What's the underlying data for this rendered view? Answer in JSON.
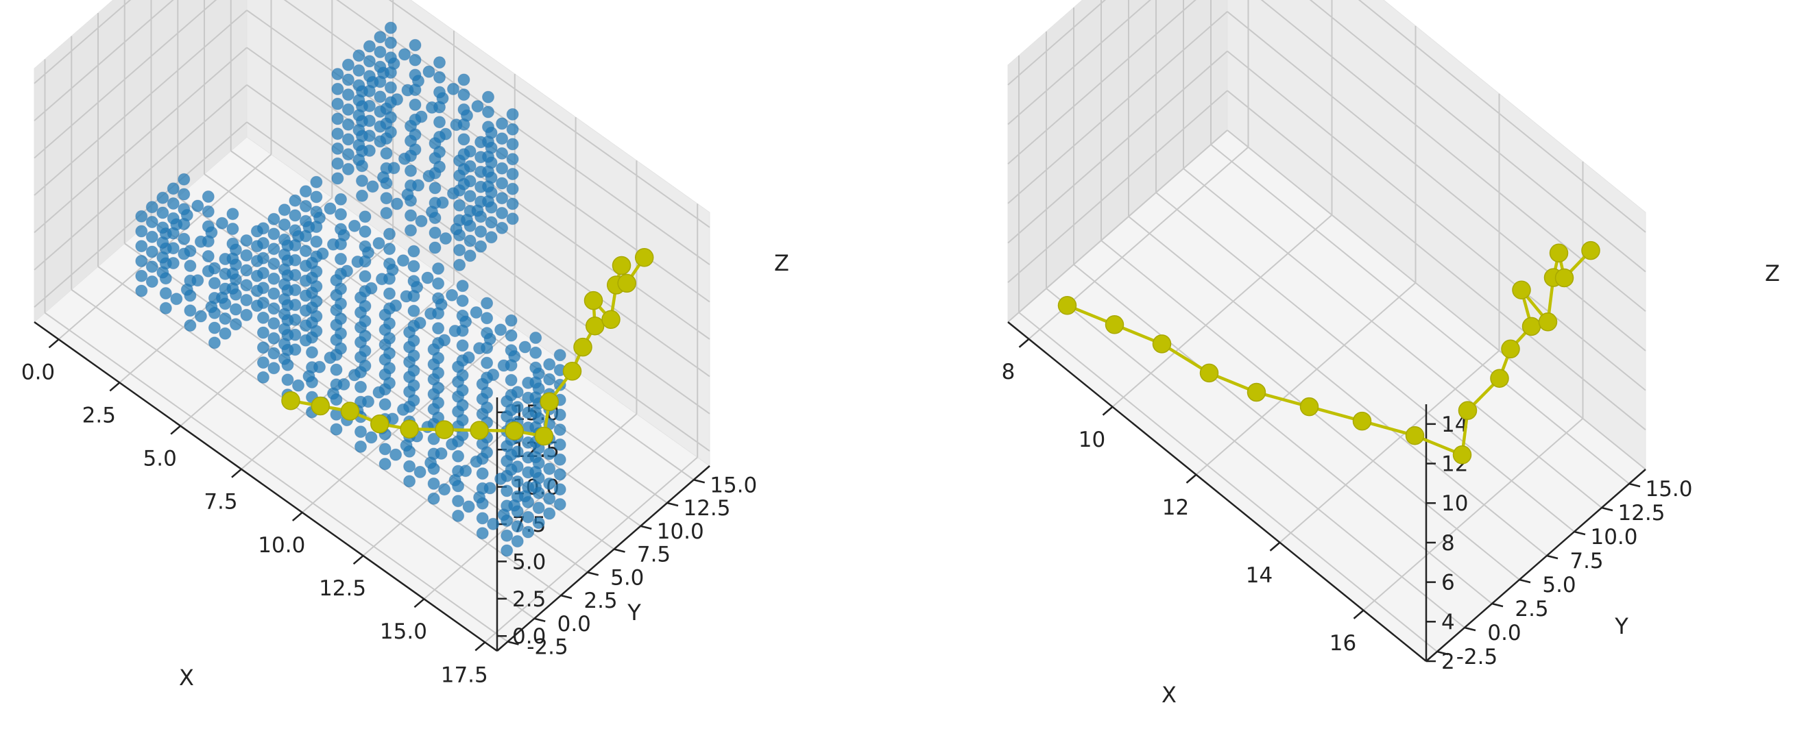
{
  "colors": {
    "voxel": "#1f77b4",
    "path": "#bfbf00",
    "pane": "#f2f2f2",
    "grid": "#c8c8c8",
    "axis": "#222222"
  },
  "chart_data": [
    {
      "type": "scatter",
      "kind": "3d",
      "xlabel": "X",
      "ylabel": "Y",
      "zlabel": "Z",
      "xlim": [
        -1,
        18
      ],
      "ylim": [
        -3.5,
        16.5
      ],
      "zlim": [
        -1,
        16
      ],
      "xticks": [
        "0.0",
        "2.5",
        "5.0",
        "7.5",
        "10.0",
        "12.5",
        "15.0",
        "17.5"
      ],
      "yticks": [
        "-2.5",
        "0.0",
        "2.5",
        "5.0",
        "7.5",
        "10.0",
        "12.5",
        "15.0"
      ],
      "zticks": [
        "0.0",
        "2.5",
        "5.0",
        "7.5",
        "10.0",
        "12.5",
        "15.0"
      ],
      "grid": true,
      "series": [
        {
          "kind": "voxels",
          "color": "voxel",
          "boxes": [
            {
              "x": [
                1,
                4
              ],
              "y": [
                2,
                6
              ],
              "z": [
                0,
                5
              ]
            },
            {
              "x": [
                6,
                16
              ],
              "y": [
                2,
                7
              ],
              "z": [
                0,
                10
              ]
            },
            {
              "x": [
                6,
                11
              ],
              "y": [
                9,
                14
              ],
              "z": [
                9,
                16
              ]
            }
          ]
        },
        {
          "kind": "path",
          "color": "path",
          "points": [
            [
              8,
              0,
              2
            ],
            [
              9,
              0.5,
              2.5
            ],
            [
              10,
              1,
              3
            ],
            [
              11,
              1.5,
              3
            ],
            [
              12,
              2,
              3.5
            ],
            [
              13,
              3,
              4
            ],
            [
              14,
              4,
              4.5
            ],
            [
              15,
              5,
              5
            ],
            [
              16,
              5.5,
              5.5
            ],
            [
              16,
              6,
              7.5
            ],
            [
              16.5,
              7,
              9.5
            ],
            [
              16.5,
              8,
              10.5
            ],
            [
              17,
              8,
              12.5
            ],
            [
              16.5,
              9,
              13
            ],
            [
              17,
              9.5,
              12
            ],
            [
              17,
              10,
              14
            ],
            [
              17,
              10.5,
              15
            ],
            [
              17,
              11,
              13.5
            ],
            [
              17.5,
              11.5,
              15.5
            ]
          ]
        }
      ]
    },
    {
      "type": "line",
      "kind": "3d",
      "xlabel": "X",
      "ylabel": "Y",
      "zlabel": "Z",
      "xlim": [
        7.5,
        17.5
      ],
      "ylim": [
        -3.5,
        16.5
      ],
      "zlim": [
        2,
        15
      ],
      "xticks": [
        "8",
        "10",
        "12",
        "14",
        "16"
      ],
      "yticks": [
        "-2.5",
        "0.0",
        "2.5",
        "5.0",
        "7.5",
        "10.0",
        "12.5",
        "15.0"
      ],
      "zticks": [
        "2",
        "4",
        "6",
        "8",
        "10",
        "12",
        "14"
      ],
      "grid": true,
      "series": [
        {
          "kind": "path",
          "color": "path",
          "points": [
            [
              8,
              0,
              2
            ],
            [
              9,
              0.5,
              2.5
            ],
            [
              10,
              1,
              3
            ],
            [
              11,
              1.5,
              3
            ],
            [
              12,
              2,
              3.5
            ],
            [
              13,
              3,
              4
            ],
            [
              14,
              4,
              4.5
            ],
            [
              15,
              5,
              5
            ],
            [
              16,
              5.5,
              5.5
            ],
            [
              16,
              6,
              7.5
            ],
            [
              16.5,
              7,
              9.5
            ],
            [
              16.5,
              8,
              10.5
            ],
            [
              17,
              8,
              12.5
            ],
            [
              16.5,
              9,
              13
            ],
            [
              17,
              9.5,
              12
            ],
            [
              17,
              10,
              14
            ],
            [
              17,
              10.5,
              15
            ],
            [
              17,
              11,
              13.5
            ],
            [
              17.5,
              11.5,
              15.5
            ]
          ]
        }
      ]
    }
  ]
}
